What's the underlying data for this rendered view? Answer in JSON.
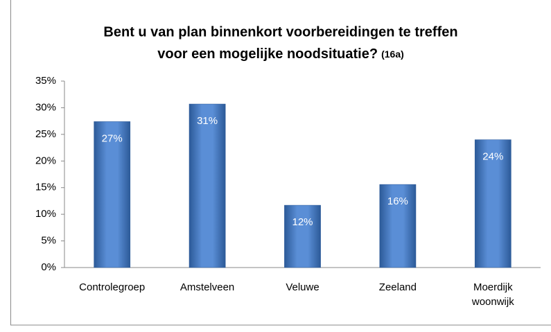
{
  "chart_data": {
    "type": "bar",
    "title_lines": [
      "Bent u van plan binnenkort voorbereidingen te treffen",
      "voor een mogelijke noodsituatie?"
    ],
    "title_note": "(16a)",
    "categories": [
      "Controlegroep",
      "Amstelveen",
      "Veluwe",
      "Zeeland",
      "Moerdijk\nwoonwijk"
    ],
    "values": [
      27.4,
      30.7,
      11.7,
      15.6,
      24.0
    ],
    "value_labels": [
      "27%",
      "31%",
      "12%",
      "16%",
      "24%"
    ],
    "color": "#4a7fc8",
    "ylim": [
      0,
      35
    ],
    "yticks": [
      {
        "value": 0,
        "label": "0%"
      },
      {
        "value": 5,
        "label": "5%"
      },
      {
        "value": 10,
        "label": "10%"
      },
      {
        "value": 15,
        "label": "15%"
      },
      {
        "value": 20,
        "label": "20%"
      },
      {
        "value": 25,
        "label": "25%"
      },
      {
        "value": 30,
        "label": "30%"
      },
      {
        "value": 35,
        "label": "35%"
      }
    ],
    "grid": false
  }
}
